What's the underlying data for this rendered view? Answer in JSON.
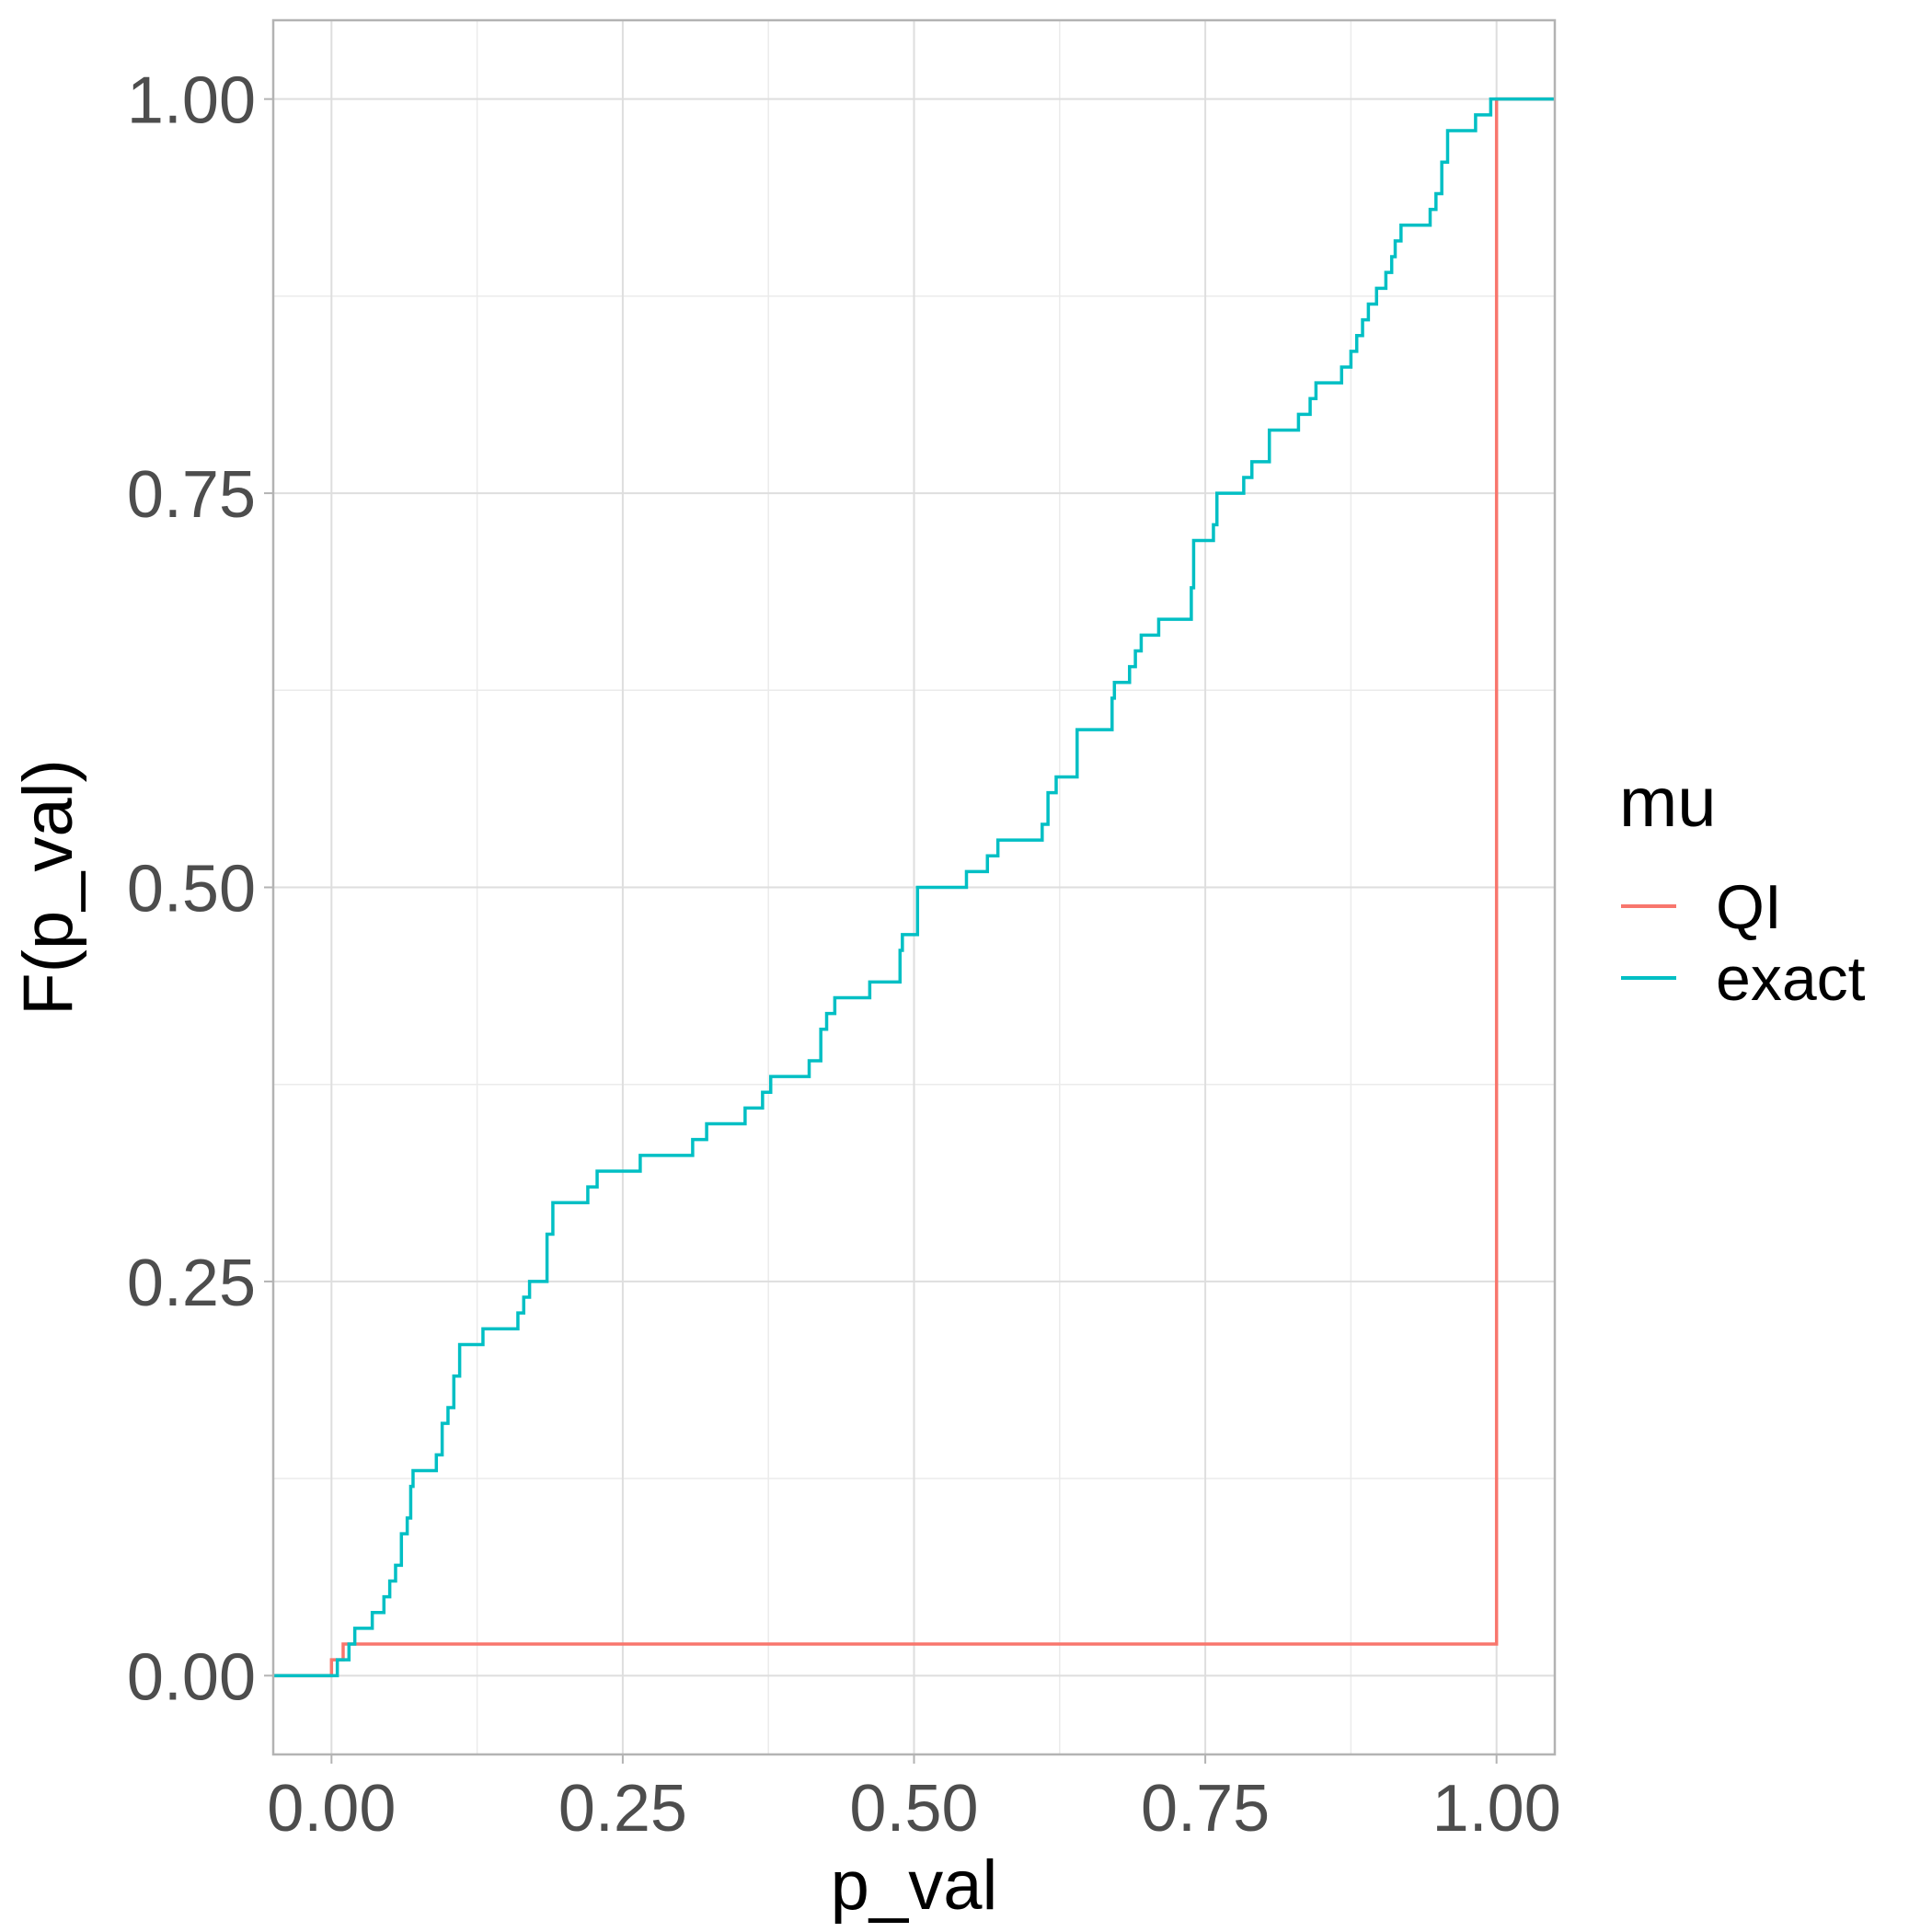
{
  "chart_data": {
    "type": "line",
    "step": true,
    "xlabel": "p_val",
    "ylabel": "F(p_val)",
    "xlim": [
      -0.05,
      1.05
    ],
    "ylim": [
      -0.05,
      1.05
    ],
    "x_ticks": [
      "0.00",
      "0.25",
      "0.50",
      "0.75",
      "1.00"
    ],
    "y_ticks": [
      "0.00",
      "0.25",
      "0.50",
      "0.75",
      "1.00"
    ],
    "grid": true,
    "legend": {
      "title": "mu",
      "placement": "right"
    },
    "series": [
      {
        "name": "QI",
        "color": "#F8766D",
        "points": [
          [
            -0.05,
            0.0
          ],
          [
            0.0,
            0.0
          ],
          [
            0.0,
            0.01
          ],
          [
            0.01,
            0.01
          ],
          [
            0.01,
            0.02
          ],
          [
            1.0,
            0.02
          ],
          [
            1.0,
            1.0
          ],
          [
            1.05,
            1.0
          ]
        ]
      },
      {
        "name": "exact",
        "color": "#00BFC4",
        "points": [
          [
            -0.05,
            0.0
          ],
          [
            0.005,
            0.0
          ],
          [
            0.005,
            0.01
          ],
          [
            0.015,
            0.01
          ],
          [
            0.015,
            0.02
          ],
          [
            0.02,
            0.02
          ],
          [
            0.02,
            0.03
          ],
          [
            0.035,
            0.03
          ],
          [
            0.035,
            0.04
          ],
          [
            0.045,
            0.04
          ],
          [
            0.045,
            0.05
          ],
          [
            0.05,
            0.05
          ],
          [
            0.05,
            0.06
          ],
          [
            0.055,
            0.06
          ],
          [
            0.055,
            0.07
          ],
          [
            0.06,
            0.07
          ],
          [
            0.06,
            0.09
          ],
          [
            0.065,
            0.09
          ],
          [
            0.065,
            0.1
          ],
          [
            0.068,
            0.1
          ],
          [
            0.068,
            0.12
          ],
          [
            0.07,
            0.12
          ],
          [
            0.07,
            0.13
          ],
          [
            0.09,
            0.13
          ],
          [
            0.09,
            0.14
          ],
          [
            0.095,
            0.14
          ],
          [
            0.095,
            0.16
          ],
          [
            0.1,
            0.16
          ],
          [
            0.1,
            0.17
          ],
          [
            0.105,
            0.17
          ],
          [
            0.105,
            0.19
          ],
          [
            0.11,
            0.19
          ],
          [
            0.11,
            0.21
          ],
          [
            0.13,
            0.21
          ],
          [
            0.13,
            0.22
          ],
          [
            0.16,
            0.22
          ],
          [
            0.16,
            0.23
          ],
          [
            0.165,
            0.23
          ],
          [
            0.165,
            0.24
          ],
          [
            0.17,
            0.24
          ],
          [
            0.17,
            0.25
          ],
          [
            0.185,
            0.25
          ],
          [
            0.185,
            0.28
          ],
          [
            0.19,
            0.28
          ],
          [
            0.19,
            0.3
          ],
          [
            0.22,
            0.3
          ],
          [
            0.22,
            0.31
          ],
          [
            0.228,
            0.31
          ],
          [
            0.228,
            0.32
          ],
          [
            0.265,
            0.32
          ],
          [
            0.265,
            0.33
          ],
          [
            0.31,
            0.33
          ],
          [
            0.31,
            0.34
          ],
          [
            0.322,
            0.34
          ],
          [
            0.322,
            0.35
          ],
          [
            0.355,
            0.35
          ],
          [
            0.355,
            0.36
          ],
          [
            0.37,
            0.36
          ],
          [
            0.37,
            0.37
          ],
          [
            0.377,
            0.37
          ],
          [
            0.377,
            0.38
          ],
          [
            0.41,
            0.38
          ],
          [
            0.41,
            0.39
          ],
          [
            0.42,
            0.39
          ],
          [
            0.42,
            0.41
          ],
          [
            0.425,
            0.41
          ],
          [
            0.425,
            0.42
          ],
          [
            0.432,
            0.42
          ],
          [
            0.432,
            0.43
          ],
          [
            0.462,
            0.43
          ],
          [
            0.462,
            0.44
          ],
          [
            0.488,
            0.44
          ],
          [
            0.488,
            0.46
          ],
          [
            0.49,
            0.46
          ],
          [
            0.49,
            0.47
          ],
          [
            0.503,
            0.47
          ],
          [
            0.503,
            0.5
          ],
          [
            0.545,
            0.5
          ],
          [
            0.545,
            0.51
          ],
          [
            0.563,
            0.51
          ],
          [
            0.563,
            0.52
          ],
          [
            0.572,
            0.52
          ],
          [
            0.572,
            0.53
          ],
          [
            0.61,
            0.53
          ],
          [
            0.61,
            0.54
          ],
          [
            0.615,
            0.54
          ],
          [
            0.615,
            0.56
          ],
          [
            0.622,
            0.56
          ],
          [
            0.622,
            0.57
          ],
          [
            0.64,
            0.57
          ],
          [
            0.64,
            0.6
          ],
          [
            0.67,
            0.6
          ],
          [
            0.67,
            0.62
          ],
          [
            0.672,
            0.62
          ],
          [
            0.672,
            0.63
          ],
          [
            0.685,
            0.63
          ],
          [
            0.685,
            0.64
          ],
          [
            0.69,
            0.64
          ],
          [
            0.69,
            0.65
          ],
          [
            0.695,
            0.65
          ],
          [
            0.695,
            0.66
          ],
          [
            0.71,
            0.66
          ],
          [
            0.71,
            0.67
          ],
          [
            0.738,
            0.67
          ],
          [
            0.738,
            0.69
          ],
          [
            0.74,
            0.69
          ],
          [
            0.74,
            0.72
          ],
          [
            0.757,
            0.72
          ],
          [
            0.757,
            0.73
          ],
          [
            0.76,
            0.73
          ],
          [
            0.76,
            0.75
          ],
          [
            0.783,
            0.75
          ],
          [
            0.783,
            0.76
          ],
          [
            0.79,
            0.76
          ],
          [
            0.79,
            0.77
          ],
          [
            0.805,
            0.77
          ],
          [
            0.805,
            0.79
          ],
          [
            0.83,
            0.79
          ],
          [
            0.83,
            0.8
          ],
          [
            0.84,
            0.8
          ],
          [
            0.84,
            0.81
          ],
          [
            0.845,
            0.81
          ],
          [
            0.845,
            0.82
          ],
          [
            0.867,
            0.82
          ],
          [
            0.867,
            0.83
          ],
          [
            0.875,
            0.83
          ],
          [
            0.875,
            0.84
          ],
          [
            0.88,
            0.84
          ],
          [
            0.88,
            0.85
          ],
          [
            0.885,
            0.85
          ],
          [
            0.885,
            0.86
          ],
          [
            0.89,
            0.86
          ],
          [
            0.89,
            0.87
          ],
          [
            0.897,
            0.87
          ],
          [
            0.897,
            0.88
          ],
          [
            0.905,
            0.88
          ],
          [
            0.905,
            0.89
          ],
          [
            0.91,
            0.89
          ],
          [
            0.91,
            0.9
          ],
          [
            0.913,
            0.9
          ],
          [
            0.913,
            0.91
          ],
          [
            0.918,
            0.91
          ],
          [
            0.918,
            0.92
          ],
          [
            0.943,
            0.92
          ],
          [
            0.943,
            0.93
          ],
          [
            0.948,
            0.93
          ],
          [
            0.948,
            0.94
          ],
          [
            0.953,
            0.94
          ],
          [
            0.953,
            0.96
          ],
          [
            0.958,
            0.96
          ],
          [
            0.958,
            0.98
          ],
          [
            0.982,
            0.98
          ],
          [
            0.982,
            0.99
          ],
          [
            0.995,
            0.99
          ],
          [
            0.995,
            1.0
          ],
          [
            1.05,
            1.0
          ]
        ]
      }
    ]
  }
}
